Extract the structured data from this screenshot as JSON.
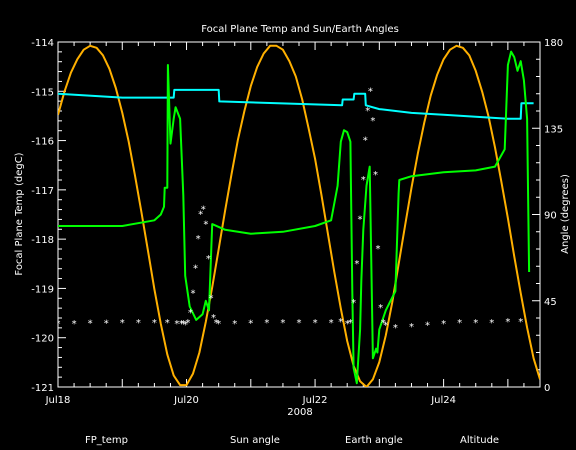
{
  "chart_data": {
    "type": "line",
    "title": "Focal Plane Temp and Sun/Earth Angles",
    "xlabel": "2008",
    "ylabel": "Focal Plane Temp (degC)",
    "y2label": "Angle (degrees)",
    "xlim": [
      18.0,
      25.5
    ],
    "ylim": [
      -121,
      -114
    ],
    "y2lim": [
      0,
      180
    ],
    "x_ticks": [
      {
        "value": 18,
        "label": "Jul18"
      },
      {
        "value": 20,
        "label": "Jul20"
      },
      {
        "value": 22,
        "label": "Jul22"
      },
      {
        "value": 24,
        "label": "Jul24"
      }
    ],
    "y_ticks": [
      -121,
      -120,
      -119,
      -118,
      -117,
      -116,
      -115,
      -114
    ],
    "y2_ticks": [
      0,
      45,
      90,
      135,
      180
    ],
    "background": "#000000",
    "axis_color": "#ffffff",
    "grid": false,
    "legend_position": "bottom",
    "series": [
      {
        "name": "FP_temp",
        "axis": "left",
        "color": "#ffffff",
        "style": "scatter",
        "x": [
          18.0,
          18.25,
          18.5,
          18.75,
          19.0,
          19.25,
          19.5,
          19.7,
          19.85,
          19.92,
          19.95,
          19.98,
          20.02,
          20.06,
          20.1,
          20.14,
          20.18,
          20.22,
          20.26,
          20.3,
          20.34,
          20.38,
          20.42,
          20.46,
          20.5,
          20.75,
          21.0,
          21.25,
          21.5,
          21.75,
          22.0,
          22.25,
          22.4,
          22.5,
          22.55,
          22.6,
          22.65,
          22.7,
          22.75,
          22.78,
          22.82,
          22.86,
          22.9,
          22.94,
          22.98,
          23.02,
          23.06,
          23.1,
          23.25,
          23.5,
          23.75,
          24.0,
          24.25,
          24.5,
          24.75,
          25.0,
          25.2
        ],
        "y": [
          -119.72,
          -119.72,
          -119.71,
          -119.71,
          -119.7,
          -119.7,
          -119.7,
          -119.7,
          -119.72,
          -119.72,
          -119.72,
          -119.74,
          -119.7,
          -119.5,
          -119.1,
          -118.6,
          -118.0,
          -117.5,
          -117.4,
          -117.7,
          -118.4,
          -119.2,
          -119.6,
          -119.7,
          -119.72,
          -119.72,
          -119.71,
          -119.7,
          -119.7,
          -119.7,
          -119.7,
          -119.7,
          -119.68,
          -119.72,
          -119.7,
          -119.3,
          -118.5,
          -117.6,
          -116.8,
          -116.0,
          -115.4,
          -115.0,
          -115.6,
          -116.7,
          -118.2,
          -119.4,
          -119.7,
          -119.75,
          -119.8,
          -119.78,
          -119.75,
          -119.72,
          -119.7,
          -119.7,
          -119.7,
          -119.68,
          -119.68
        ]
      },
      {
        "name": "Sun angle",
        "axis": "right",
        "color": "#00ffff",
        "style": "line",
        "x": [
          18.0,
          19.0,
          19.8,
          19.81,
          20.5,
          20.51,
          22.42,
          22.43,
          22.6,
          22.61,
          22.78,
          22.79,
          23.0,
          23.5,
          24.0,
          25.0,
          25.2,
          25.21,
          25.4
        ],
        "y": [
          153,
          151,
          151,
          155,
          155,
          149,
          147,
          150,
          150,
          153,
          153,
          147,
          145,
          143,
          142,
          140,
          140,
          148,
          148
        ]
      },
      {
        "name": "Earth angle",
        "axis": "right",
        "color": "#00ff00",
        "style": "line",
        "x": [
          18.0,
          19.0,
          19.5,
          19.6,
          19.65,
          19.66,
          19.7,
          19.71,
          19.75,
          19.8,
          19.83,
          19.9,
          19.95,
          19.98,
          20.05,
          20.15,
          20.25,
          20.3,
          20.35,
          20.4,
          20.6,
          21.0,
          21.5,
          22.0,
          22.25,
          22.35,
          22.4,
          22.45,
          22.5,
          22.55,
          22.58,
          22.6,
          22.65,
          22.7,
          22.72,
          22.75,
          22.8,
          22.85,
          22.9,
          22.95,
          22.97,
          23.0,
          23.1,
          23.25,
          23.3,
          23.31,
          23.5,
          24.0,
          24.5,
          24.8,
          24.95,
          25.0,
          25.05,
          25.1,
          25.15,
          25.2,
          25.25,
          25.3,
          25.33
        ],
        "y": [
          84,
          84,
          87,
          90,
          94,
          104,
          104,
          168,
          127,
          140,
          146,
          140,
          100,
          58,
          42,
          35,
          38,
          45,
          40,
          85,
          82,
          80,
          81,
          84,
          87,
          105,
          128,
          134,
          133,
          128,
          50,
          10,
          2,
          30,
          55,
          82,
          105,
          115,
          15,
          20,
          18,
          30,
          40,
          50,
          101,
          108,
          110,
          112,
          113,
          115,
          124,
          168,
          175,
          172,
          165,
          170,
          160,
          140,
          60
        ]
      },
      {
        "name": "Altitude",
        "axis": "right",
        "color": "#ffb000",
        "style": "line",
        "x": [
          18.0,
          18.1,
          18.2,
          18.3,
          18.4,
          18.5,
          18.6,
          18.7,
          18.8,
          18.9,
          19.0,
          19.1,
          19.2,
          19.3,
          19.4,
          19.5,
          19.6,
          19.7,
          19.8,
          19.9,
          20.0,
          20.1,
          20.2,
          20.3,
          20.4,
          20.5,
          20.6,
          20.7,
          20.8,
          20.9,
          21.0,
          21.1,
          21.2,
          21.3,
          21.4,
          21.5,
          21.6,
          21.7,
          21.8,
          21.9,
          22.0,
          22.1,
          22.2,
          22.3,
          22.4,
          22.5,
          22.6,
          22.7,
          22.8,
          22.9,
          23.0,
          23.1,
          23.2,
          23.3,
          23.4,
          23.5,
          23.6,
          23.7,
          23.8,
          23.9,
          24.0,
          24.1,
          24.2,
          24.3,
          24.4,
          24.5,
          24.6,
          24.7,
          24.8,
          24.9,
          25.0,
          25.1,
          25.2,
          25.3,
          25.4,
          25.5
        ],
        "y": [
          142,
          154,
          164,
          171,
          176,
          178,
          177,
          173,
          166,
          156,
          143,
          128,
          110,
          91,
          71,
          51,
          33,
          17,
          6,
          1,
          1,
          7,
          18,
          34,
          52,
          72,
          92,
          111,
          129,
          144,
          157,
          167,
          174,
          178,
          178,
          176,
          170,
          162,
          150,
          135,
          119,
          100,
          80,
          60,
          41,
          24,
          11,
          3,
          0,
          4,
          13,
          27,
          44,
          64,
          84,
          104,
          122,
          138,
          152,
          163,
          171,
          176,
          178,
          177,
          173,
          165,
          154,
          141,
          125,
          107,
          88,
          68,
          49,
          31,
          15,
          4
        ]
      }
    ]
  }
}
